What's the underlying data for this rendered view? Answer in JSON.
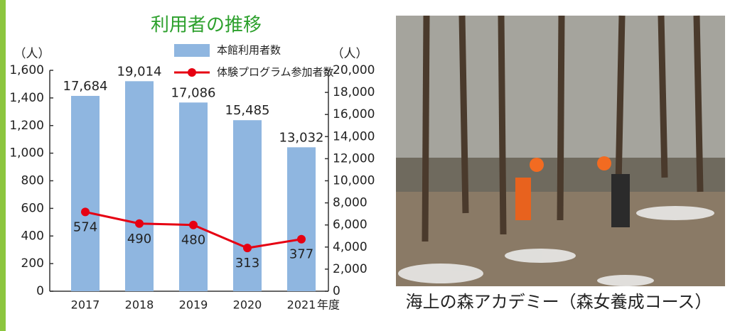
{
  "chart_data": {
    "type": "combo",
    "title": "利用者の推移",
    "categories": [
      "2017",
      "2018",
      "2019",
      "2020",
      "2021"
    ],
    "x_label": "年度",
    "ylabel": "（人）",
    "y2label": "（人）",
    "ylim": [
      0,
      1600
    ],
    "yticks": [
      0,
      200,
      400,
      600,
      800,
      {
        "value": 1000,
        "label": "1,000"
      },
      {
        "value": 1200,
        "label": "1,200"
      },
      {
        "value": 1400,
        "label": "1,400"
      },
      {
        "value": 1600,
        "label": "1,600"
      }
    ],
    "y2lim": [
      0,
      20000
    ],
    "y2ticks": [
      0,
      {
        "value": 2000,
        "label": "2,000"
      },
      {
        "value": 4000,
        "label": "4,000"
      },
      {
        "value": 6000,
        "label": "6,000"
      },
      {
        "value": 8000,
        "label": "8,000"
      },
      {
        "value": 10000,
        "label": "10,000"
      },
      {
        "value": 12000,
        "label": "12,000"
      },
      {
        "value": 14000,
        "label": "14,000"
      },
      {
        "value": 16000,
        "label": "16,000"
      },
      {
        "value": 18000,
        "label": "18,000"
      },
      {
        "value": 20000,
        "label": "20,000"
      }
    ],
    "series": [
      {
        "name": "本館利用者数",
        "type": "bar",
        "axis": "y2",
        "color": "#8fb6e0",
        "values": [
          17684,
          19014,
          17086,
          15485,
          13032
        ],
        "value_labels": [
          "17,684",
          "19,014",
          "17,086",
          "15,485",
          "13,032"
        ]
      },
      {
        "name": "体験プログラム参加者数",
        "type": "line",
        "color": "#e60012",
        "values": [
          574,
          490,
          480,
          313,
          377
        ]
      }
    ]
  },
  "photo": {
    "caption": "海上の森アカデミー（森女養成コース）"
  }
}
